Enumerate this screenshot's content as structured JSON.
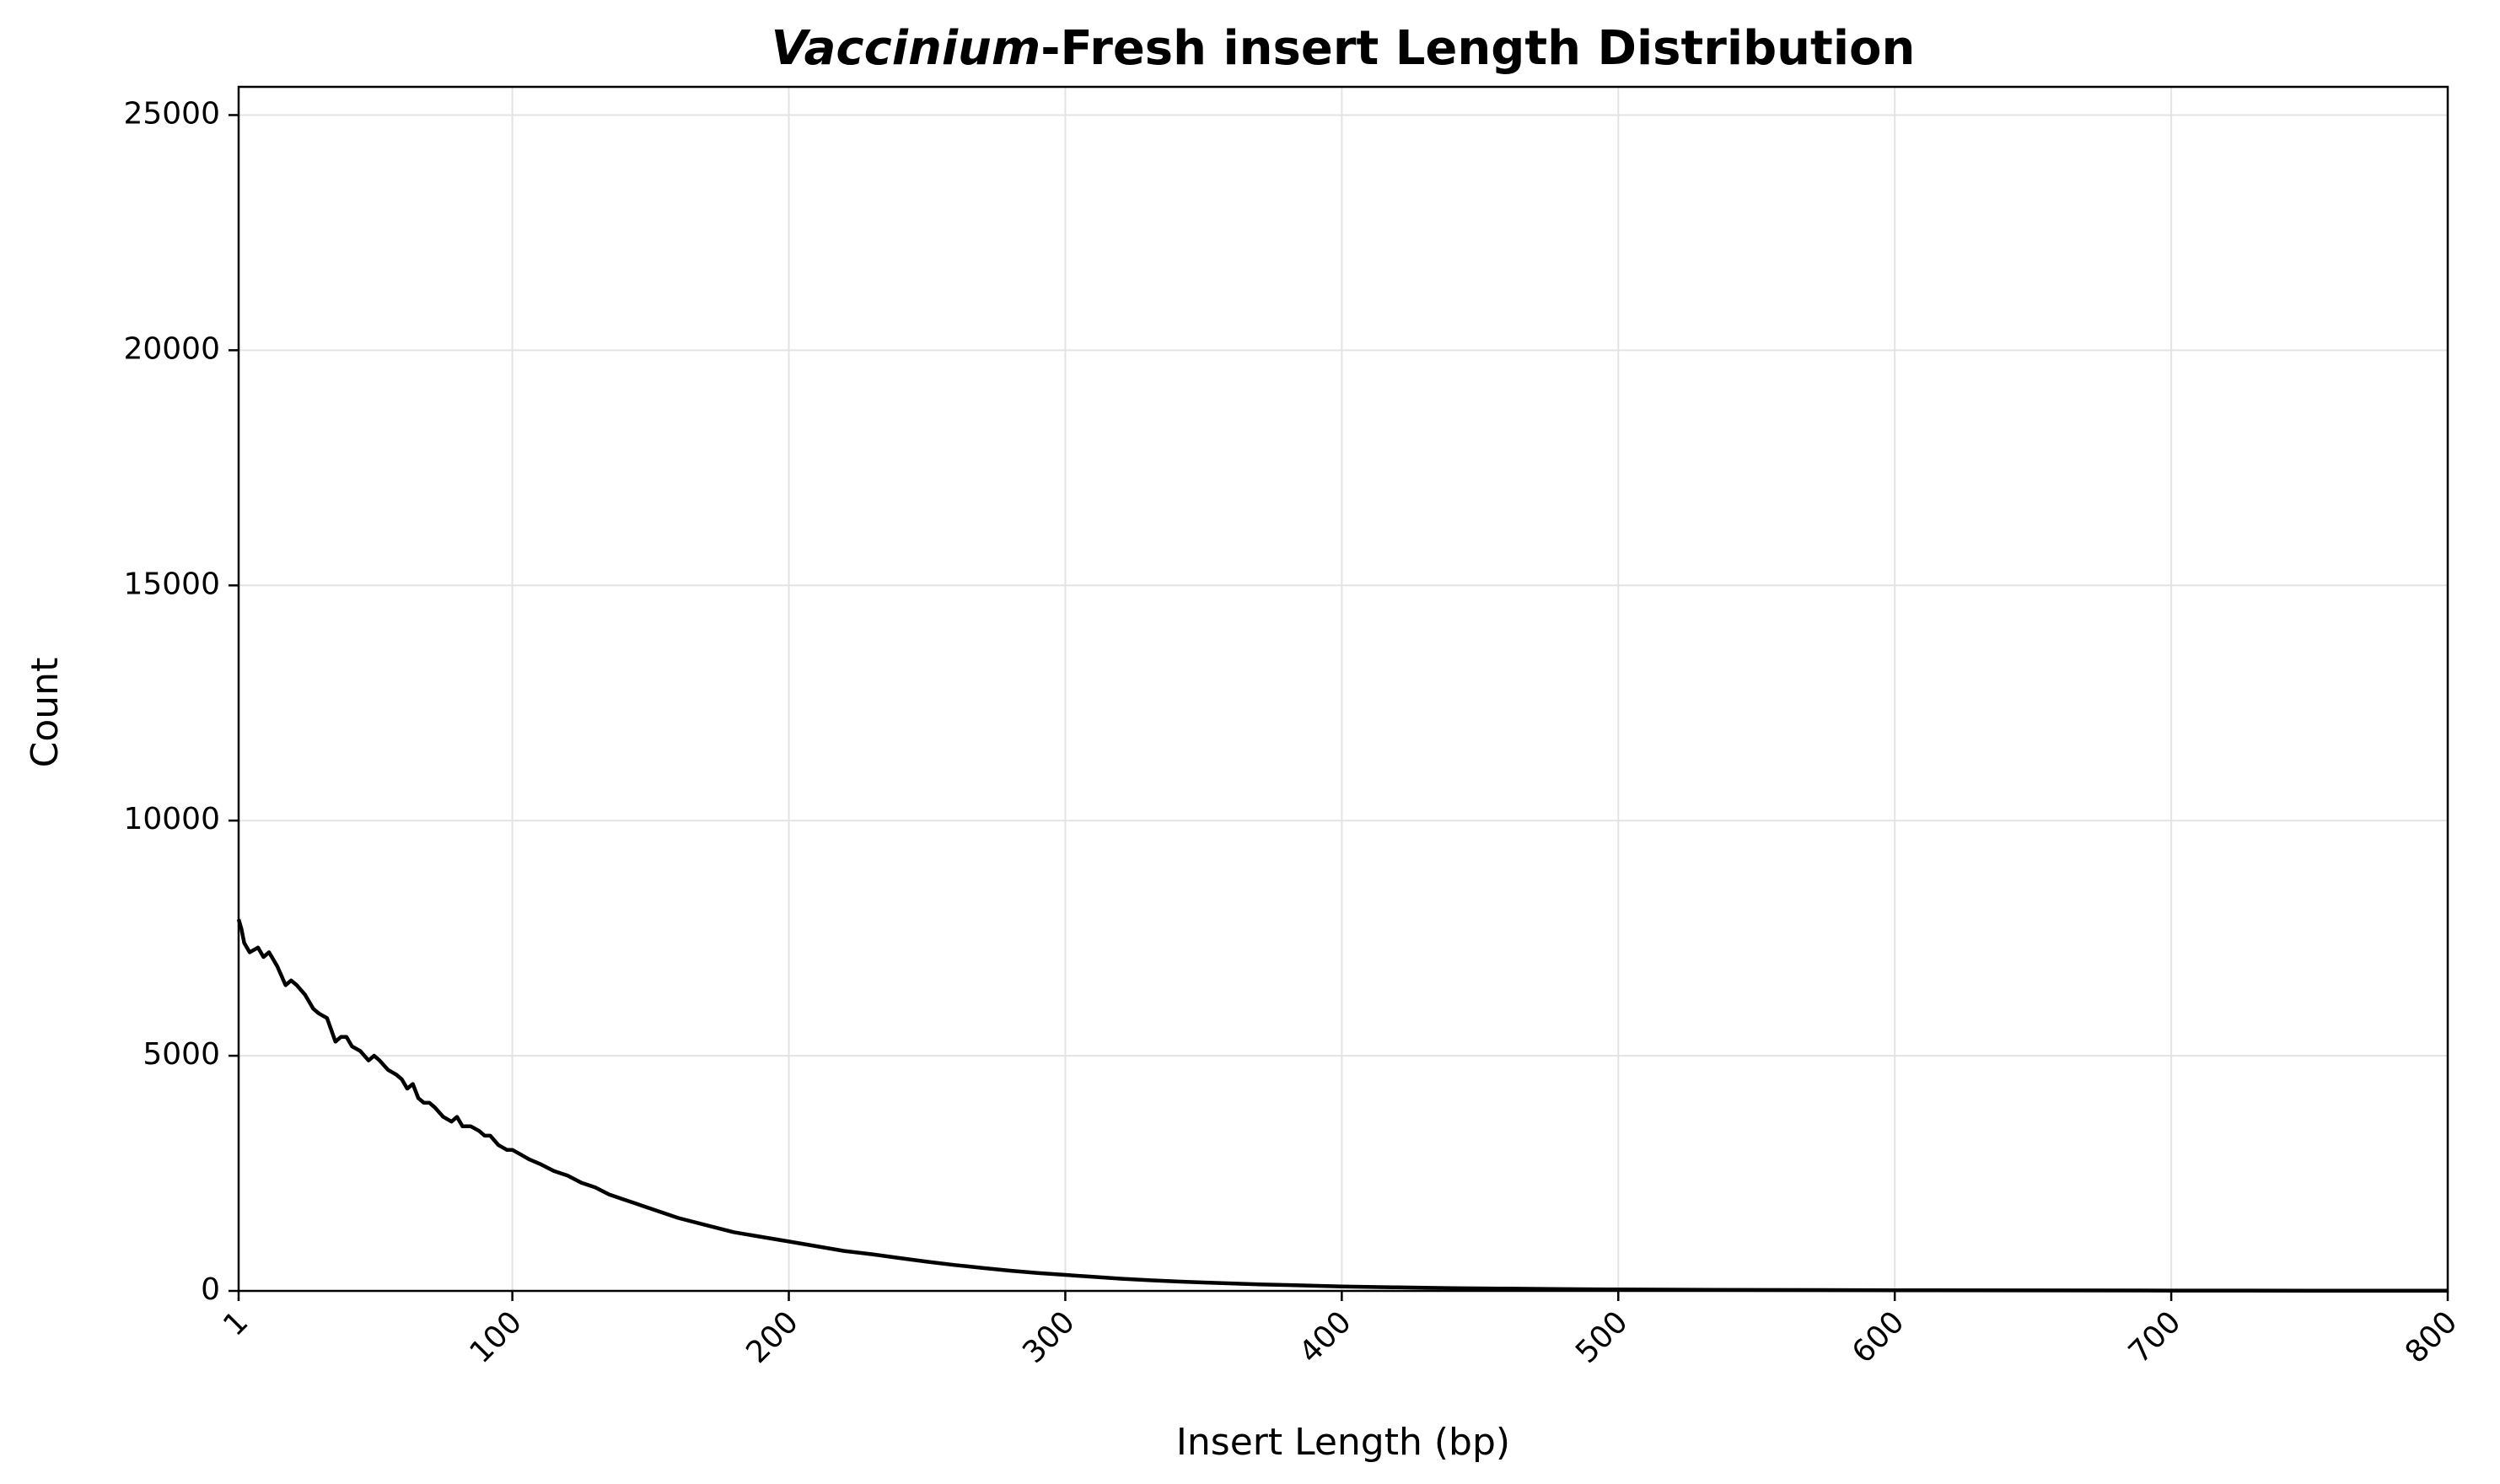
{
  "chart_data": {
    "type": "line",
    "title_italic": "Vaccinium",
    "title_rest": "-Fresh insert Length Distribution",
    "xlabel": "Insert Length (bp)",
    "ylabel": "Count",
    "xlim": [
      1,
      800
    ],
    "ylim": [
      0,
      25600
    ],
    "x_ticks": [
      1,
      100,
      200,
      300,
      400,
      500,
      600,
      700,
      800
    ],
    "x_tick_labels": [
      "1",
      "100",
      "200",
      "300",
      "400",
      "500",
      "600",
      "700",
      "800"
    ],
    "y_ticks": [
      0,
      5000,
      10000,
      15000,
      20000,
      25000
    ],
    "y_tick_labels": [
      "0",
      "5000",
      "10000",
      "15000",
      "20000",
      "25000"
    ],
    "grid": true,
    "line_color": "#000000",
    "series": [
      {
        "x": [
          1,
          2,
          3,
          5,
          8,
          10,
          12,
          15,
          18,
          20,
          22,
          25,
          28,
          30,
          33,
          36,
          38,
          40,
          42,
          45,
          48,
          50,
          52,
          55,
          58,
          60,
          62,
          64,
          66,
          68,
          70,
          72,
          75,
          78,
          80,
          82,
          85,
          88,
          90,
          92,
          95,
          98,
          100,
          103,
          106,
          110,
          115,
          120,
          125,
          130,
          135,
          140,
          145,
          150,
          160,
          170,
          180,
          190,
          200,
          210,
          220,
          230,
          240,
          250,
          260,
          270,
          280,
          290,
          300,
          310,
          320,
          330,
          340,
          350,
          360,
          370,
          380,
          390,
          400,
          420,
          440,
          460,
          480,
          500,
          550,
          600,
          650,
          700,
          750,
          800
        ],
        "y": [
          7900,
          7700,
          7400,
          7200,
          7300,
          7100,
          7200,
          6900,
          6500,
          6600,
          6500,
          6300,
          6000,
          5900,
          5800,
          5300,
          5400,
          5400,
          5200,
          5100,
          4900,
          5000,
          4900,
          4700,
          4600,
          4500,
          4300,
          4400,
          4100,
          4000,
          4000,
          3900,
          3700,
          3600,
          3700,
          3500,
          3500,
          3400,
          3300,
          3300,
          3100,
          3000,
          3000,
          2900,
          2800,
          2700,
          2550,
          2450,
          2300,
          2200,
          2050,
          1950,
          1850,
          1750,
          1550,
          1400,
          1250,
          1150,
          1050,
          950,
          850,
          780,
          700,
          620,
          550,
          490,
          430,
          380,
          340,
          300,
          260,
          230,
          200,
          180,
          160,
          140,
          125,
          110,
          95,
          75,
          60,
          48,
          38,
          30,
          20,
          14,
          10,
          7,
          5,
          4
        ]
      }
    ]
  }
}
